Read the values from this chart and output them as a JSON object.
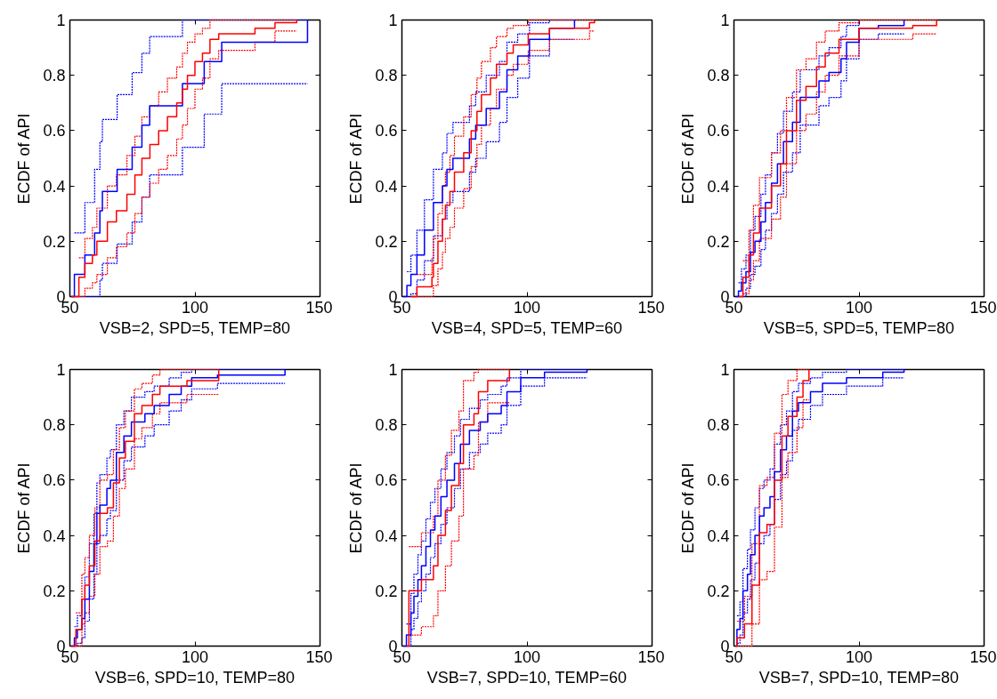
{
  "chart_data": [
    {
      "type": "step",
      "xlabel": "VSB=2, SPD=5, TEMP=80",
      "ylabel": "ECDF of API",
      "xlim": [
        50,
        150
      ],
      "ylim": [
        0,
        1
      ],
      "xticks": [
        50,
        100,
        150
      ],
      "yticks": [
        0,
        0.2,
        0.4,
        0.6,
        0.8,
        1
      ],
      "series": [
        {
          "color": "#0000ff",
          "line_style": "dotted",
          "x": [
            51.8,
            56,
            59.9,
            62,
            63,
            68.9,
            74.9,
            78.8,
            81.9,
            95,
            103.7,
            110.7,
            145
          ],
          "values": [
            0,
            0,
            0,
            0.06,
            0.12,
            0.19,
            0.27,
            0.36,
            0.44,
            0.54,
            0.66,
            0.77,
            0.77
          ]
        },
        {
          "color": "#0000ff",
          "line_style": "dotted",
          "x": [
            51.8,
            56,
            59.9,
            62,
            63,
            68.9,
            74.9,
            78.8,
            81.9,
            95,
            103.7,
            110.7,
            145
          ],
          "values": [
            0.23,
            0.34,
            0.46,
            0.56,
            0.64,
            0.73,
            0.81,
            0.88,
            0.94,
            1,
            1,
            1,
            1
          ]
        },
        {
          "color": "#ff0000",
          "line_style": "dotted",
          "x": [
            53.6,
            56,
            59,
            60.8,
            65,
            68.6,
            72.8,
            76,
            78.8,
            82,
            85.5,
            89,
            92.7,
            95,
            97,
            100,
            103,
            106,
            109.5,
            124,
            132,
            140.7
          ],
          "values": [
            0,
            0.03,
            0.05,
            0.08,
            0.14,
            0.18,
            0.23,
            0.3,
            0.36,
            0.41,
            0.46,
            0.51,
            0.57,
            0.62,
            0.68,
            0.75,
            0.79,
            0.86,
            0.89,
            0.92,
            0.96,
            0.96
          ]
        },
        {
          "color": "#ff0000",
          "line_style": "dotted",
          "x": [
            53.6,
            56,
            59,
            60.8,
            65,
            68.6,
            72.8,
            76,
            78.8,
            82,
            85.5,
            89,
            92.7,
            95,
            97,
            100,
            103,
            106,
            109.5,
            124,
            132,
            140.7
          ],
          "values": [
            0.14,
            0.21,
            0.25,
            0.32,
            0.4,
            0.44,
            0.51,
            0.58,
            0.65,
            0.69,
            0.74,
            0.79,
            0.83,
            0.88,
            0.92,
            0.95,
            0.97,
            1,
            1,
            1,
            1,
            1
          ]
        },
        {
          "color": "#0000ff",
          "x": [
            50.6,
            51.8,
            56,
            59.9,
            62,
            63,
            68.9,
            74.9,
            78.8,
            81.9,
            95,
            103.7,
            110.7,
            145
          ],
          "values": [
            0,
            0.08,
            0.15,
            0.23,
            0.31,
            0.38,
            0.46,
            0.54,
            0.62,
            0.69,
            0.77,
            0.85,
            0.92,
            1
          ]
        },
        {
          "color": "#ff0000",
          "x": [
            50.6,
            53.6,
            56,
            59,
            60.8,
            65,
            68.6,
            72.8,
            76,
            78.8,
            82,
            85.5,
            89,
            92.7,
            95,
            97,
            100,
            103,
            106,
            109.5,
            124,
            132,
            140.7
          ],
          "values": [
            0,
            0.07,
            0.12,
            0.15,
            0.2,
            0.27,
            0.31,
            0.37,
            0.44,
            0.5,
            0.55,
            0.6,
            0.65,
            0.7,
            0.75,
            0.8,
            0.85,
            0.88,
            0.93,
            0.95,
            0.97,
            0.99,
            1
          ]
        }
      ]
    },
    {
      "type": "step",
      "xlabel": "VSB=4, SPD=5, TEMP=60",
      "ylabel": "ECDF of API",
      "xlim": [
        50,
        150
      ],
      "ylim": [
        0,
        1
      ],
      "xticks": [
        50,
        100,
        150
      ],
      "yticks": [
        0,
        0.2,
        0.4,
        0.6,
        0.8,
        1
      ],
      "series": [
        {
          "color": "#0000ff",
          "line_style": "dotted",
          "x": [
            52,
            53.6,
            56,
            59,
            62.6,
            66.2,
            68,
            70.4,
            77,
            79.5,
            83.7,
            89,
            92,
            96.3,
            101,
            109,
            119
          ],
          "values": [
            0,
            0.01,
            0.06,
            0.13,
            0.22,
            0.28,
            0.34,
            0.38,
            0.45,
            0.5,
            0.56,
            0.63,
            0.72,
            0.79,
            0.87,
            0.93,
            0.93
          ]
        },
        {
          "color": "#0000ff",
          "line_style": "dotted",
          "x": [
            52,
            53.6,
            56,
            59,
            62.6,
            66.2,
            68,
            70.4,
            77,
            79.5,
            83.7,
            89,
            92,
            96.3,
            101,
            109,
            119
          ],
          "values": [
            0.09,
            0.15,
            0.24,
            0.35,
            0.46,
            0.52,
            0.59,
            0.63,
            0.69,
            0.74,
            0.8,
            0.85,
            0.92,
            0.95,
            0.99,
            1,
            1
          ]
        },
        {
          "color": "#ff0000",
          "line_style": "dotted",
          "x": [
            56,
            62,
            62.6,
            64.4,
            66.2,
            67.4,
            69.2,
            71,
            74.7,
            77.7,
            80,
            81.8,
            85.4,
            87.8,
            92,
            94.5,
            100.5,
            109,
            125,
            127
          ],
          "values": [
            0,
            0,
            0.04,
            0.1,
            0.16,
            0.21,
            0.25,
            0.32,
            0.39,
            0.47,
            0.55,
            0.62,
            0.68,
            0.75,
            0.8,
            0.84,
            0.89,
            0.93,
            0.96,
            0.96
          ]
        },
        {
          "color": "#ff0000",
          "line_style": "dotted",
          "x": [
            56,
            62,
            62.6,
            64.4,
            66.2,
            67.4,
            69.2,
            71,
            74.7,
            77.7,
            80,
            81.8,
            85.4,
            87.8,
            92,
            94.5,
            100.5,
            109,
            125,
            127
          ],
          "values": [
            0.08,
            0.14,
            0.21,
            0.3,
            0.4,
            0.45,
            0.51,
            0.58,
            0.65,
            0.73,
            0.79,
            0.85,
            0.9,
            0.94,
            0.97,
            0.98,
            1,
            1,
            1,
            1
          ]
        },
        {
          "color": "#0000ff",
          "x": [
            50.6,
            52,
            53.6,
            56,
            59,
            62.6,
            66.2,
            68,
            70.4,
            77,
            79.5,
            83.7,
            89,
            92,
            96.3,
            101,
            109,
            119
          ],
          "values": [
            0,
            0.04,
            0.08,
            0.15,
            0.24,
            0.34,
            0.4,
            0.46,
            0.5,
            0.57,
            0.62,
            0.68,
            0.74,
            0.82,
            0.87,
            0.93,
            0.97,
            1
          ]
        },
        {
          "color": "#ff0000",
          "x": [
            53.6,
            56,
            62,
            62.6,
            64.4,
            66.2,
            67.4,
            69.2,
            71,
            74.7,
            77.7,
            80,
            81.8,
            85.4,
            87.8,
            92,
            94.5,
            100.5,
            109,
            125,
            127
          ],
          "values": [
            0,
            0.035,
            0.07,
            0.12,
            0.2,
            0.28,
            0.33,
            0.38,
            0.45,
            0.52,
            0.6,
            0.67,
            0.73,
            0.79,
            0.84,
            0.88,
            0.91,
            0.95,
            0.97,
            0.99,
            1
          ]
        }
      ]
    },
    {
      "type": "step",
      "xlabel": "VSB=5, SPD=5, TEMP=80",
      "ylabel": "ECDF of API",
      "xlim": [
        50,
        150
      ],
      "ylim": [
        0,
        1
      ],
      "xticks": [
        50,
        100,
        150
      ],
      "yticks": [
        0,
        0.2,
        0.4,
        0.6,
        0.8,
        1
      ],
      "series": [
        {
          "color": "#0000ff",
          "line_style": "dotted",
          "x": [
            51.8,
            53,
            54.8,
            56.6,
            58.4,
            60.8,
            62.6,
            65,
            67.4,
            69.8,
            73.4,
            76.5,
            84,
            88,
            92.8,
            95,
            100,
            107.7,
            118
          ],
          "values": [
            0,
            0,
            0.03,
            0.08,
            0.11,
            0.17,
            0.24,
            0.3,
            0.37,
            0.45,
            0.52,
            0.62,
            0.69,
            0.72,
            0.78,
            0.86,
            0.93,
            0.95,
            0.95
          ]
        },
        {
          "color": "#0000ff",
          "line_style": "dotted",
          "x": [
            51.8,
            53,
            54.8,
            56.6,
            58.4,
            60.8,
            62.6,
            65,
            67.4,
            69.8,
            73.4,
            76.5,
            84,
            88,
            92.8,
            95,
            100,
            107.7,
            118
          ],
          "values": [
            0.05,
            0.1,
            0.15,
            0.24,
            0.29,
            0.37,
            0.44,
            0.52,
            0.59,
            0.67,
            0.74,
            0.82,
            0.87,
            0.9,
            0.94,
            0.98,
            1,
            1,
            1
          ]
        },
        {
          "color": "#ff0000",
          "line_style": "dotted",
          "x": [
            53.6,
            56,
            57.8,
            60.2,
            65,
            68.6,
            71,
            75,
            78.8,
            83,
            86.5,
            92,
            100,
            121.5,
            131
          ],
          "values": [
            0.01,
            0.06,
            0.13,
            0.21,
            0.28,
            0.36,
            0.48,
            0.6,
            0.66,
            0.74,
            0.8,
            0.87,
            0.93,
            0.95,
            0.95
          ]
        },
        {
          "color": "#ff0000",
          "line_style": "dotted",
          "x": [
            53.6,
            56,
            57.8,
            60.2,
            65,
            68.6,
            71,
            75,
            78.8,
            83,
            86.5,
            92,
            100,
            121.5,
            131
          ],
          "values": [
            0.13,
            0.24,
            0.33,
            0.43,
            0.52,
            0.6,
            0.72,
            0.82,
            0.86,
            0.92,
            0.96,
            0.99,
            1,
            1,
            1
          ]
        },
        {
          "color": "#0000ff",
          "x": [
            50.6,
            51.8,
            53,
            54.8,
            56.6,
            58.4,
            60.8,
            62.6,
            65,
            67.4,
            69.8,
            73.4,
            76.5,
            84,
            88,
            92.8,
            95,
            100,
            107.7,
            118
          ],
          "values": [
            0,
            0.02,
            0.05,
            0.09,
            0.16,
            0.2,
            0.27,
            0.34,
            0.41,
            0.48,
            0.56,
            0.63,
            0.72,
            0.78,
            0.81,
            0.86,
            0.92,
            0.97,
            0.98,
            1
          ]
        },
        {
          "color": "#ff0000",
          "x": [
            51.8,
            53.6,
            56,
            57.8,
            60.2,
            65,
            68.6,
            71,
            75,
            78.8,
            83,
            86.5,
            92,
            100,
            121.5,
            131
          ],
          "values": [
            0,
            0.07,
            0.15,
            0.23,
            0.32,
            0.4,
            0.48,
            0.6,
            0.71,
            0.76,
            0.83,
            0.88,
            0.93,
            0.97,
            0.98,
            1
          ]
        }
      ]
    },
    {
      "type": "step",
      "xlabel": "VSB=6, SPD=10, TEMP=80",
      "ylabel": "ECDF of API",
      "xlim": [
        50,
        150
      ],
      "ylim": [
        0,
        1
      ],
      "xticks": [
        50,
        100,
        150
      ],
      "yticks": [
        0,
        0.2,
        0.4,
        0.6,
        0.8,
        1
      ],
      "series": [
        {
          "color": "#0000ff",
          "line_style": "dotted",
          "x": [
            51.8,
            53,
            54.8,
            56,
            57.8,
            59.6,
            60.8,
            62,
            64.8,
            66.2,
            68.6,
            71.6,
            74.6,
            80,
            83.7,
            89.7,
            94.5,
            98.7,
            109,
            136
          ],
          "values": [
            0,
            0.01,
            0.03,
            0.09,
            0.17,
            0.26,
            0.37,
            0.4,
            0.46,
            0.49,
            0.6,
            0.67,
            0.72,
            0.76,
            0.8,
            0.85,
            0.89,
            0.93,
            0.95,
            0.95
          ]
        },
        {
          "color": "#0000ff",
          "line_style": "dotted",
          "x": [
            51.8,
            53,
            54.8,
            56,
            57.8,
            59.6,
            60.8,
            62,
            64.8,
            66.2,
            68.6,
            71.6,
            74.6,
            80,
            83.7,
            89.7,
            94.5,
            98.7,
            109,
            136
          ],
          "values": [
            0.07,
            0.11,
            0.17,
            0.25,
            0.37,
            0.48,
            0.59,
            0.62,
            0.68,
            0.71,
            0.8,
            0.85,
            0.9,
            0.92,
            0.94,
            0.97,
            0.99,
            1,
            1,
            1
          ]
        },
        {
          "color": "#ff0000",
          "line_style": "dotted",
          "x": [
            52.4,
            54.8,
            56,
            57.8,
            60,
            62,
            65,
            67.4,
            69.8,
            72.2,
            75.8,
            78.8,
            83,
            86,
            96.8,
            109.5
          ],
          "values": [
            0,
            0.08,
            0.12,
            0.18,
            0.26,
            0.36,
            0.38,
            0.47,
            0.57,
            0.64,
            0.75,
            0.79,
            0.84,
            0.88,
            0.91,
            0.91
          ]
        },
        {
          "color": "#ff0000",
          "line_style": "dotted",
          "x": [
            52.4,
            54.8,
            56,
            57.8,
            60,
            62,
            65,
            67.4,
            69.8,
            72.2,
            75.8,
            78.8,
            83,
            86,
            96.8,
            109.5
          ],
          "values": [
            0.12,
            0.26,
            0.32,
            0.4,
            0.5,
            0.6,
            0.62,
            0.71,
            0.79,
            0.85,
            0.93,
            0.95,
            0.98,
            1,
            1,
            1
          ]
        },
        {
          "color": "#0000ff",
          "x": [
            50.6,
            51.8,
            53,
            54.8,
            56,
            57.8,
            59.6,
            60.8,
            62,
            64.8,
            66.2,
            68.6,
            71.6,
            74.6,
            80,
            83.7,
            89.7,
            94.5,
            98.7,
            109,
            136
          ],
          "values": [
            0,
            0.03,
            0.06,
            0.1,
            0.17,
            0.27,
            0.37,
            0.48,
            0.51,
            0.57,
            0.6,
            0.7,
            0.76,
            0.81,
            0.84,
            0.87,
            0.91,
            0.94,
            0.97,
            0.98,
            1
          ]
        },
        {
          "color": "#ff0000",
          "x": [
            50.6,
            52.4,
            54.8,
            56,
            57.8,
            60,
            62,
            65,
            67.4,
            69.8,
            72.2,
            75.8,
            78.8,
            83,
            86,
            96.8,
            109.5
          ],
          "values": [
            0,
            0.06,
            0.17,
            0.22,
            0.29,
            0.38,
            0.48,
            0.5,
            0.59,
            0.68,
            0.74,
            0.84,
            0.87,
            0.91,
            0.94,
            0.96,
            1
          ]
        }
      ]
    },
    {
      "type": "step",
      "xlabel": "VSB=7, SPD=10, TEMP=60",
      "ylabel": "ECDF of API",
      "xlim": [
        50,
        150
      ],
      "ylim": [
        0,
        1
      ],
      "xticks": [
        50,
        100,
        150
      ],
      "yticks": [
        0,
        0.2,
        0.4,
        0.6,
        0.8,
        1
      ],
      "series": [
        {
          "color": "#0000ff",
          "line_style": "dotted",
          "x": [
            51.8,
            53.6,
            54.8,
            56.4,
            57.8,
            59.6,
            61.4,
            63.2,
            65.6,
            68,
            71,
            73.4,
            77,
            81.3,
            84.3,
            89.7,
            92,
            97.5,
            107,
            124
          ],
          "values": [
            0,
            0.06,
            0.1,
            0.16,
            0.2,
            0.26,
            0.32,
            0.37,
            0.44,
            0.5,
            0.57,
            0.64,
            0.7,
            0.73,
            0.77,
            0.8,
            0.87,
            0.94,
            0.97,
            0.97
          ]
        },
        {
          "color": "#0000ff",
          "line_style": "dotted",
          "x": [
            51.8,
            53.6,
            54.8,
            56.4,
            57.8,
            59.6,
            61.4,
            63.2,
            65.6,
            68,
            71,
            73.4,
            77,
            81.3,
            84.3,
            89.7,
            92,
            97.5,
            107,
            124
          ],
          "values": [
            0.08,
            0.19,
            0.26,
            0.33,
            0.38,
            0.46,
            0.52,
            0.57,
            0.64,
            0.7,
            0.76,
            0.82,
            0.86,
            0.89,
            0.91,
            0.94,
            0.97,
            1,
            1,
            1
          ]
        },
        {
          "color": "#ff0000",
          "line_style": "dotted",
          "x": [
            52.8,
            57.8,
            62.6,
            64.4,
            67.4,
            69.8,
            72.8,
            74.6,
            78.8,
            80.6,
            84.3,
            93
          ],
          "values": [
            0.04,
            0.07,
            0.11,
            0.2,
            0.29,
            0.38,
            0.47,
            0.64,
            0.69,
            0.81,
            0.88,
            0.88
          ]
        },
        {
          "color": "#ff0000",
          "line_style": "dotted",
          "x": [
            52.8,
            57.8,
            62.6,
            64.4,
            67.4,
            69.8,
            72.8,
            74.6,
            78.8,
            80.6,
            84.3,
            93
          ],
          "values": [
            0.36,
            0.41,
            0.47,
            0.6,
            0.69,
            0.78,
            0.85,
            0.96,
            0.99,
            1,
            1,
            1
          ]
        },
        {
          "color": "#0000ff",
          "x": [
            50.6,
            51.8,
            53.6,
            54.8,
            56.4,
            57.8,
            59.6,
            61.4,
            63.2,
            65.6,
            68,
            71,
            73.4,
            77,
            81.3,
            84.3,
            89.7,
            92,
            97.5,
            107,
            124
          ],
          "values": [
            0,
            0.04,
            0.12,
            0.18,
            0.24,
            0.29,
            0.36,
            0.42,
            0.47,
            0.54,
            0.6,
            0.66,
            0.73,
            0.78,
            0.81,
            0.84,
            0.87,
            0.92,
            0.97,
            0.99,
            1
          ]
        },
        {
          "color": "#ff0000",
          "x": [
            51.8,
            52.8,
            57.8,
            62.6,
            64.4,
            67.4,
            69.8,
            72.8,
            74.6,
            78.8,
            80.6,
            84.3,
            93
          ],
          "values": [
            0,
            0.2,
            0.24,
            0.29,
            0.4,
            0.49,
            0.58,
            0.66,
            0.8,
            0.84,
            0.92,
            0.96,
            1
          ]
        }
      ]
    },
    {
      "type": "step",
      "xlabel": "VSB=7, SPD=10, TEMP=80",
      "ylabel": "ECDF of API",
      "xlim": [
        50,
        150
      ],
      "ylim": [
        0,
        1
      ],
      "xticks": [
        50,
        100,
        150
      ],
      "yticks": [
        0,
        0.2,
        0.4,
        0.6,
        0.8,
        1
      ],
      "series": [
        {
          "color": "#0000ff",
          "line_style": "dotted",
          "x": [
            51.2,
            52.4,
            53.6,
            55.4,
            56.6,
            58.4,
            60.2,
            62,
            64.4,
            66.2,
            68.6,
            71,
            73.4,
            75.8,
            80.6,
            85.4,
            95,
            109.5,
            118
          ],
          "values": [
            0.01,
            0.04,
            0.12,
            0.17,
            0.24,
            0.3,
            0.37,
            0.4,
            0.44,
            0.53,
            0.62,
            0.67,
            0.78,
            0.82,
            0.87,
            0.91,
            0.94,
            0.97,
            0.97
          ]
        },
        {
          "color": "#0000ff",
          "line_style": "dotted",
          "x": [
            51.2,
            52.4,
            53.6,
            55.4,
            56.6,
            58.4,
            60.2,
            62,
            64.4,
            66.2,
            68.6,
            71,
            73.4,
            75.8,
            80.6,
            85.4,
            95,
            109.5,
            118
          ],
          "values": [
            0.11,
            0.16,
            0.28,
            0.35,
            0.42,
            0.5,
            0.57,
            0.6,
            0.64,
            0.73,
            0.8,
            0.85,
            0.92,
            0.95,
            0.97,
            0.99,
            1,
            1,
            1
          ]
        },
        {
          "color": "#ff0000",
          "line_style": "dotted",
          "x": [
            51.2,
            54.2,
            57.2,
            60.2,
            63.2,
            66.2,
            69.2,
            71.6,
            75.2,
            77.6,
            80
          ],
          "values": [
            0,
            0,
            0.08,
            0.24,
            0.27,
            0.43,
            0.61,
            0.7,
            0.79,
            0.89,
            0.89
          ]
        },
        {
          "color": "#ff0000",
          "line_style": "dotted",
          "x": [
            51.2,
            54.2,
            57.2,
            60.2,
            63.2,
            66.2,
            69.2,
            71.6,
            75.2,
            77.6,
            80
          ],
          "values": [
            0.09,
            0.18,
            0.37,
            0.58,
            0.61,
            0.77,
            0.91,
            0.96,
            1,
            1,
            1
          ]
        },
        {
          "color": "#0000ff",
          "x": [
            50.6,
            51.2,
            52.4,
            53.6,
            55.4,
            56.6,
            58.4,
            60.2,
            62,
            64.4,
            66.2,
            68.6,
            71,
            73.4,
            75.8,
            80.6,
            85.4,
            95,
            109.5,
            118
          ],
          "values": [
            0,
            0.06,
            0.1,
            0.2,
            0.26,
            0.33,
            0.4,
            0.47,
            0.5,
            0.54,
            0.63,
            0.71,
            0.76,
            0.85,
            0.88,
            0.92,
            0.95,
            0.97,
            0.99,
            1
          ]
        },
        {
          "color": "#ff0000",
          "x": [
            50.6,
            51.2,
            54.2,
            57.2,
            60.2,
            63.2,
            66.2,
            69.2,
            71.6,
            75.2,
            77.6,
            80
          ],
          "values": [
            0,
            0.03,
            0.08,
            0.22,
            0.41,
            0.44,
            0.6,
            0.76,
            0.83,
            0.9,
            0.96,
            1
          ]
        }
      ]
    }
  ]
}
